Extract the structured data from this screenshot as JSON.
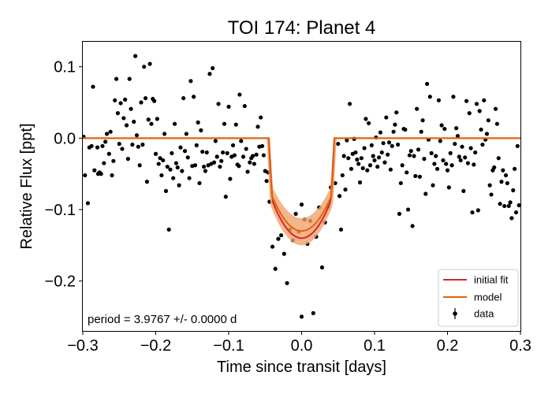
{
  "chart_data": {
    "type": "scatter",
    "title": "TOI 174: Planet 4",
    "xlabel": "Time since transit [days]",
    "ylabel": "Relative Flux [ppt]",
    "xlim": [
      -0.3,
      0.3
    ],
    "ylim": [
      -0.27,
      0.135
    ],
    "xticks": [
      -0.3,
      -0.2,
      -0.1,
      0.0,
      0.1,
      0.2,
      0.3
    ],
    "xtick_labels": [
      "−0.3",
      "−0.2",
      "−0.1",
      "0.0",
      "0.1",
      "0.2",
      "0.3"
    ],
    "yticks": [
      0.1,
      0.0,
      -0.1,
      -0.2
    ],
    "ytick_labels": [
      "0.1",
      "0.0",
      "−0.1",
      "−0.2"
    ],
    "annotation": "period = 3.9767 +/- 0.0000 d",
    "legend": {
      "placement": "bottom-right",
      "entries": [
        "initial fit",
        "model",
        "data"
      ]
    },
    "colors": {
      "data": "#000000",
      "initial_fit": "#d62728",
      "model": "#e0620d",
      "model_band": "#f0a36b"
    },
    "series": [
      {
        "name": "data",
        "points": [
          [
            -0.299,
            0.002
          ],
          [
            -0.297,
            -0.052
          ],
          [
            -0.293,
            -0.091
          ],
          [
            -0.291,
            -0.013
          ],
          [
            -0.288,
            -0.011
          ],
          [
            -0.286,
            0.072
          ],
          [
            -0.284,
            -0.045
          ],
          [
            -0.28,
            -0.013
          ],
          [
            -0.279,
            -0.05
          ],
          [
            -0.277,
            -0.048
          ],
          [
            -0.275,
            -0.05
          ],
          [
            -0.273,
            -0.011
          ],
          [
            -0.271,
            -0.035
          ],
          [
            -0.269,
            -0.005
          ],
          [
            -0.267,
            0.006
          ],
          [
            -0.264,
            -0.022
          ],
          [
            -0.262,
            0.009
          ],
          [
            -0.26,
            -0.052
          ],
          [
            -0.258,
            -0.032
          ],
          [
            -0.256,
            0.053
          ],
          [
            -0.254,
            0.083
          ],
          [
            -0.252,
            0.035
          ],
          [
            -0.25,
            -0.008
          ],
          [
            -0.248,
            0.049
          ],
          [
            -0.246,
            -0.015
          ],
          [
            -0.244,
            0.028
          ],
          [
            -0.242,
            0.054
          ],
          [
            -0.24,
            0.018
          ],
          [
            -0.238,
            -0.029
          ],
          [
            -0.236,
            0.083
          ],
          [
            -0.234,
            0.041
          ],
          [
            -0.232,
            -0.009
          ],
          [
            -0.23,
            0.023
          ],
          [
            -0.228,
            0.115
          ],
          [
            -0.226,
            0.004
          ],
          [
            -0.224,
            -0.012
          ],
          [
            -0.222,
            -0.038
          ],
          [
            -0.22,
            0.05
          ],
          [
            -0.218,
            -0.009
          ],
          [
            -0.216,
            0.1
          ],
          [
            -0.214,
            0.056
          ],
          [
            -0.212,
            -0.061
          ],
          [
            -0.21,
            0.026
          ],
          [
            -0.208,
            0.104
          ],
          [
            -0.206,
            0.02
          ],
          [
            -0.204,
            0.055
          ],
          [
            -0.202,
            0.052
          ],
          [
            -0.2,
            -0.022
          ],
          [
            -0.198,
            0.027
          ],
          [
            -0.196,
            -0.036
          ],
          [
            -0.194,
            -0.028
          ],
          [
            -0.192,
            -0.052
          ],
          [
            -0.19,
            -0.031
          ],
          [
            -0.188,
            0.006
          ],
          [
            -0.186,
            -0.074
          ],
          [
            -0.184,
            -0.04
          ],
          [
            -0.182,
            -0.128
          ],
          [
            -0.18,
            -0.044
          ],
          [
            -0.178,
            -0.021
          ],
          [
            -0.176,
            -0.056
          ],
          [
            -0.174,
            0.02
          ],
          [
            -0.172,
            -0.035
          ],
          [
            -0.17,
            -0.041
          ],
          [
            -0.168,
            -0.066
          ],
          [
            -0.166,
            -0.013
          ],
          [
            -0.164,
            -0.046
          ],
          [
            -0.162,
            0.056
          ],
          [
            -0.16,
            -0.018
          ],
          [
            -0.158,
            0.006
          ],
          [
            -0.156,
            -0.027
          ],
          [
            -0.154,
            -0.056
          ],
          [
            -0.152,
            0.08
          ],
          [
            -0.15,
            -0.039
          ],
          [
            -0.148,
            0.058
          ],
          [
            -0.146,
            -0.038
          ],
          [
            -0.144,
            -0.01
          ],
          [
            -0.142,
            0.022
          ],
          [
            -0.14,
            -0.063
          ],
          [
            -0.138,
            0.011
          ],
          [
            -0.136,
            -0.019
          ],
          [
            -0.134,
            -0.04
          ],
          [
            -0.132,
            -0.046
          ],
          [
            -0.13,
            -0.02
          ],
          [
            -0.128,
            -0.038
          ],
          [
            -0.126,
            0.09
          ],
          [
            -0.124,
            -0.036
          ],
          [
            -0.122,
            0.098
          ],
          [
            -0.12,
            -0.034
          ],
          [
            -0.118,
            -0.004
          ],
          [
            -0.116,
            -0.026
          ],
          [
            -0.114,
            0.048
          ],
          [
            -0.112,
            -0.04
          ],
          [
            -0.11,
            -0.032
          ],
          [
            -0.108,
            -0.02
          ],
          [
            -0.106,
            0.02
          ],
          [
            -0.104,
            -0.082
          ],
          [
            -0.102,
            -0.021
          ],
          [
            -0.1,
            0.044
          ],
          [
            -0.098,
            -0.057
          ],
          [
            -0.096,
            -0.026
          ],
          [
            -0.094,
            -0.01
          ],
          [
            -0.092,
            -0.024
          ],
          [
            -0.09,
            0.019
          ],
          [
            -0.088,
            -0.037
          ],
          [
            -0.086,
            -0.039
          ],
          [
            -0.085,
            0.061
          ],
          [
            -0.083,
            -0.004
          ],
          [
            -0.08,
            -0.026
          ],
          [
            -0.078,
            0.045
          ],
          [
            -0.076,
            -0.015
          ],
          [
            -0.074,
            -0.047
          ],
          [
            -0.071,
            -0.034
          ],
          [
            -0.069,
            -0.028
          ],
          [
            -0.067,
            -0.025
          ],
          [
            -0.065,
            -0.036
          ],
          [
            -0.062,
            -0.023
          ],
          [
            -0.06,
            0.016
          ],
          [
            -0.058,
            -0.012
          ],
          [
            -0.056,
            0.029
          ],
          [
            -0.054,
            -0.011
          ],
          [
            -0.052,
            -0.024
          ],
          [
            -0.05,
            -0.046
          ],
          [
            -0.048,
            -0.06
          ],
          [
            -0.046,
            -0.048
          ],
          [
            -0.044,
            -0.089
          ],
          [
            -0.04,
            -0.152
          ],
          [
            -0.036,
            -0.183
          ],
          [
            -0.032,
            -0.141
          ],
          [
            -0.028,
            -0.136
          ],
          [
            -0.024,
            -0.162
          ],
          [
            -0.02,
            -0.203
          ],
          [
            -0.016,
            -0.128
          ],
          [
            -0.012,
            -0.143
          ],
          [
            -0.008,
            -0.106
          ],
          [
            -0.004,
            -0.131
          ],
          [
            0.0,
            -0.093
          ],
          [
            0.0,
            -0.25
          ],
          [
            0.004,
            -0.114
          ],
          [
            0.008,
            -0.148
          ],
          [
            0.012,
            -0.116
          ],
          [
            0.016,
            -0.245
          ],
          [
            0.02,
            -0.138
          ],
          [
            0.024,
            -0.097
          ],
          [
            0.028,
            -0.181
          ],
          [
            0.032,
            -0.118
          ],
          [
            0.036,
            -0.096
          ],
          [
            0.04,
            -0.069
          ],
          [
            0.046,
            -0.063
          ],
          [
            0.05,
            -0.008
          ],
          [
            0.052,
            -0.081
          ],
          [
            0.054,
            -0.128
          ],
          [
            0.056,
            -0.052
          ],
          [
            0.058,
            -0.025
          ],
          [
            0.06,
            -0.072
          ],
          [
            0.062,
            -0.003
          ],
          [
            0.064,
            -0.028
          ],
          [
            0.066,
            0.048
          ],
          [
            0.068,
            -0.043
          ],
          [
            0.07,
            -0.022
          ],
          [
            0.072,
            -0.001
          ],
          [
            0.074,
            -0.02
          ],
          [
            0.076,
            -0.03
          ],
          [
            0.078,
            -0.036
          ],
          [
            0.08,
            -0.062
          ],
          [
            0.082,
            -0.028
          ],
          [
            0.084,
            -0.042
          ],
          [
            0.086,
            -0.014
          ],
          [
            0.088,
            0.027
          ],
          [
            0.09,
            -0.045
          ],
          [
            0.092,
            0.021
          ],
          [
            0.094,
            -0.038
          ],
          [
            0.096,
            -0.01
          ],
          [
            0.098,
            -0.025
          ],
          [
            0.1,
            -0.031
          ],
          [
            0.102,
            0.001
          ],
          [
            0.104,
            -0.04
          ],
          [
            0.106,
            -0.027
          ],
          [
            0.108,
            0.008
          ],
          [
            0.11,
            -0.02
          ],
          [
            0.112,
            -0.007
          ],
          [
            0.114,
            -0.034
          ],
          [
            0.116,
            0.029
          ],
          [
            0.118,
            -0.023
          ],
          [
            0.12,
            -0.006
          ],
          [
            0.122,
            -0.044
          ],
          [
            0.124,
            -0.011
          ],
          [
            0.126,
            0.009
          ],
          [
            0.128,
            0.019
          ],
          [
            0.13,
            0.036
          ],
          [
            0.132,
            -0.009
          ],
          [
            0.134,
            -0.106
          ],
          [
            0.136,
            -0.063
          ],
          [
            0.138,
            -0.038
          ],
          [
            0.14,
            0.013
          ],
          [
            0.142,
            0.012
          ],
          [
            0.144,
            -0.048
          ],
          [
            0.146,
            -0.1
          ],
          [
            0.148,
            -0.024
          ],
          [
            0.15,
            -0.018
          ],
          [
            0.152,
            -0.123
          ],
          [
            0.154,
            -0.025
          ],
          [
            0.156,
            -0.053
          ],
          [
            0.158,
            0.041
          ],
          [
            0.16,
            -0.016
          ],
          [
            0.162,
            -0.054
          ],
          [
            0.164,
            0.009
          ],
          [
            0.166,
            0.025
          ],
          [
            0.168,
            -0.029
          ],
          [
            0.17,
            -0.078
          ],
          [
            0.172,
            0.076
          ],
          [
            0.174,
            -0.002
          ],
          [
            0.176,
            0.058
          ],
          [
            0.178,
            -0.021
          ],
          [
            0.18,
            -0.066
          ],
          [
            0.182,
            -0.036
          ],
          [
            0.184,
            -0.025
          ],
          [
            0.186,
            -0.043
          ],
          [
            0.188,
            0.053
          ],
          [
            0.19,
            -0.004
          ],
          [
            0.192,
            0.018
          ],
          [
            0.194,
            -0.031
          ],
          [
            0.196,
            0.013
          ],
          [
            0.198,
            -0.036
          ],
          [
            0.2,
            -0.045
          ],
          [
            0.202,
            -0.069
          ],
          [
            0.204,
            -0.021
          ],
          [
            0.206,
            -0.038
          ],
          [
            0.208,
            0.058
          ],
          [
            0.21,
            -0.008
          ],
          [
            0.212,
            0.014
          ],
          [
            0.214,
            0.003
          ],
          [
            0.216,
            -0.026
          ],
          [
            0.218,
            -0.031
          ],
          [
            0.22,
            -0.012
          ],
          [
            0.222,
            -0.074
          ],
          [
            0.224,
            -0.027
          ],
          [
            0.226,
            0.052
          ],
          [
            0.228,
            -0.035
          ],
          [
            0.23,
            0.035
          ],
          [
            0.232,
            -0.014
          ],
          [
            0.234,
            -0.104
          ],
          [
            0.236,
            -0.037
          ],
          [
            0.238,
            -0.02
          ],
          [
            0.24,
            0.048
          ],
          [
            0.242,
            -0.101
          ],
          [
            0.244,
            0.038
          ],
          [
            0.246,
            0.012
          ],
          [
            0.248,
            -0.009
          ],
          [
            0.25,
            0.053
          ],
          [
            0.252,
            -0.002
          ],
          [
            0.254,
            0.006
          ],
          [
            0.256,
            0.025
          ],
          [
            0.258,
            -0.066
          ],
          [
            0.26,
            -0.079
          ],
          [
            0.262,
            -0.045
          ],
          [
            0.264,
            -0.041
          ],
          [
            0.266,
            0.041
          ],
          [
            0.268,
            0.02
          ],
          [
            0.27,
            -0.028
          ],
          [
            0.272,
            -0.092
          ],
          [
            0.274,
            -0.061
          ],
          [
            0.276,
            -0.045
          ],
          [
            0.278,
            -0.095
          ],
          [
            0.28,
            -0.052
          ],
          [
            0.282,
            -0.063
          ],
          [
            0.284,
            -0.095
          ],
          [
            0.286,
            -0.09
          ],
          [
            0.288,
            -0.112
          ],
          [
            0.29,
            -0.073
          ],
          [
            0.292,
            -0.043
          ],
          [
            0.294,
            -0.104
          ],
          [
            0.296,
            -0.011
          ],
          [
            0.298,
            -0.094
          ]
        ]
      }
    ]
  }
}
